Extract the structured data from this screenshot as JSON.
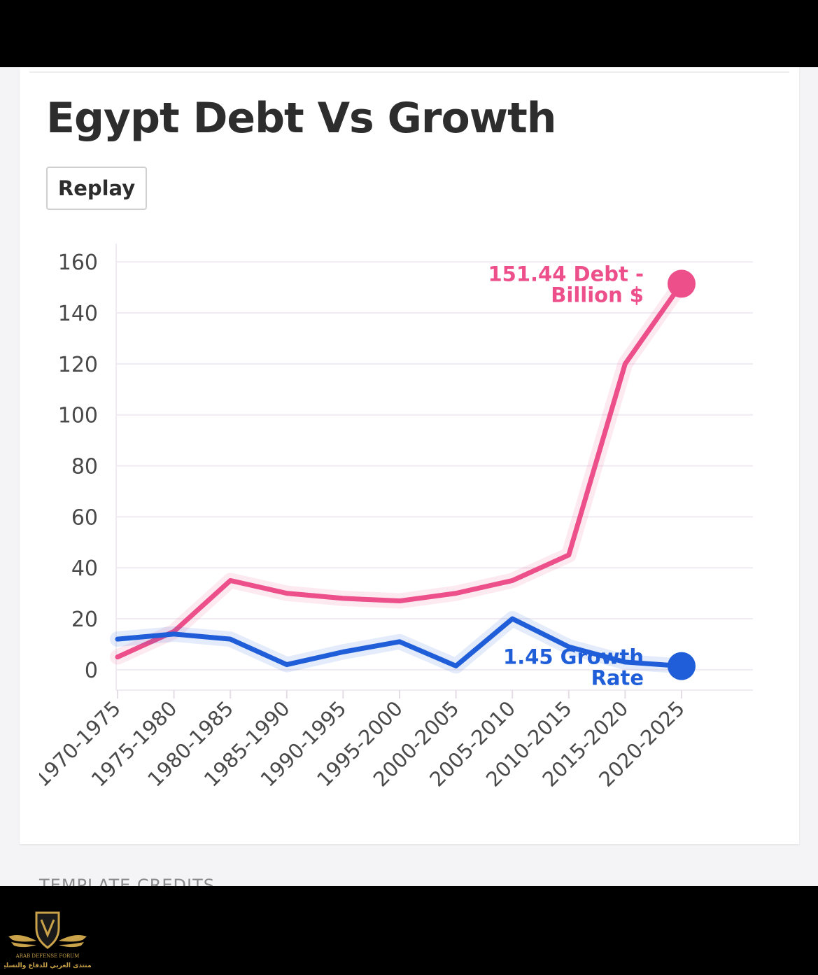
{
  "title": "Egypt Debt Vs Growth",
  "replay_label": "Replay",
  "credits_label": "TEMPLATE CREDITS",
  "colors": {
    "debt": "#ec4f8a",
    "growth": "#1f5ed8",
    "grid": "#f0eaf2",
    "title": "#2d2d2d",
    "watermark": "#c9a24a"
  },
  "watermark": {
    "icon": "shield-wings-logo",
    "line1": "ARAB DEFENSE FORUM",
    "line2": "المنتدى العربي للدفاع والتسليح"
  },
  "chart_data": {
    "type": "line",
    "categories": [
      "1970-1975",
      "1975-1980",
      "1980-1985",
      "1985-1990",
      "1990-1995",
      "1995-2000",
      "2000-2005",
      "2005-2010",
      "2010-2015",
      "2015-2020",
      "2020-2025"
    ],
    "series": [
      {
        "name": "Debt - Billion $",
        "color": "#ec4f8a",
        "values": [
          5,
          15,
          35,
          30,
          28,
          27,
          30,
          35,
          45,
          120,
          151.44
        ],
        "end_label_value": "151.44",
        "end_label_line1": "151.44 Debt -",
        "end_label_line2": "Billion $"
      },
      {
        "name": "Growth Rate",
        "color": "#1f5ed8",
        "values": [
          12,
          14,
          12,
          2,
          7,
          11,
          1.5,
          20,
          9,
          3,
          1.45
        ],
        "end_label_value": "1.45",
        "end_label_line1": "1.45 Growth",
        "end_label_line2": "Rate"
      }
    ],
    "ylim": [
      -8,
      165
    ],
    "yticks": [
      0,
      20,
      40,
      60,
      80,
      100,
      120,
      140,
      160
    ],
    "grid": true,
    "legend": "end-of-line labels"
  }
}
